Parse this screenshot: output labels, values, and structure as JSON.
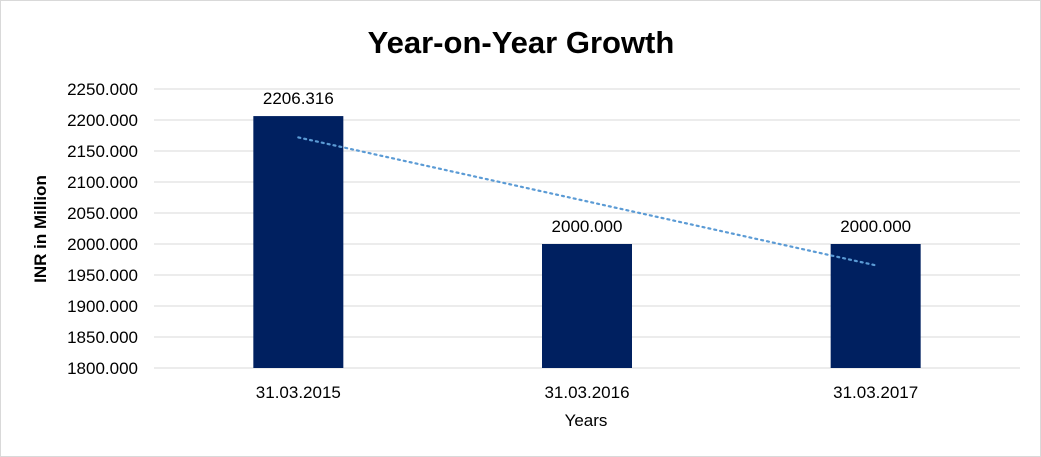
{
  "chart_data": {
    "type": "bar",
    "title": "Year-on-Year Growth",
    "xlabel": "Years",
    "ylabel": "INR in Million",
    "categories": [
      "31.03.2015",
      "31.03.2016",
      "31.03.2017"
    ],
    "values": [
      2206.316,
      2000.0,
      2000.0
    ],
    "data_labels": [
      "2206.316",
      "2000.000",
      "2000.000"
    ],
    "ylim": [
      1800,
      2250
    ],
    "yticks": [
      "1800.000",
      "1850.000",
      "1900.000",
      "1950.000",
      "2000.000",
      "2050.000",
      "2100.000",
      "2150.000",
      "2200.000",
      "2250.000"
    ],
    "grid": true,
    "legend": "none",
    "trendline": {
      "type": "linear",
      "style": "dotted",
      "color": "#5b9bd5"
    },
    "colors": {
      "bar": "#002060",
      "grid": "#d9d9d9"
    }
  }
}
